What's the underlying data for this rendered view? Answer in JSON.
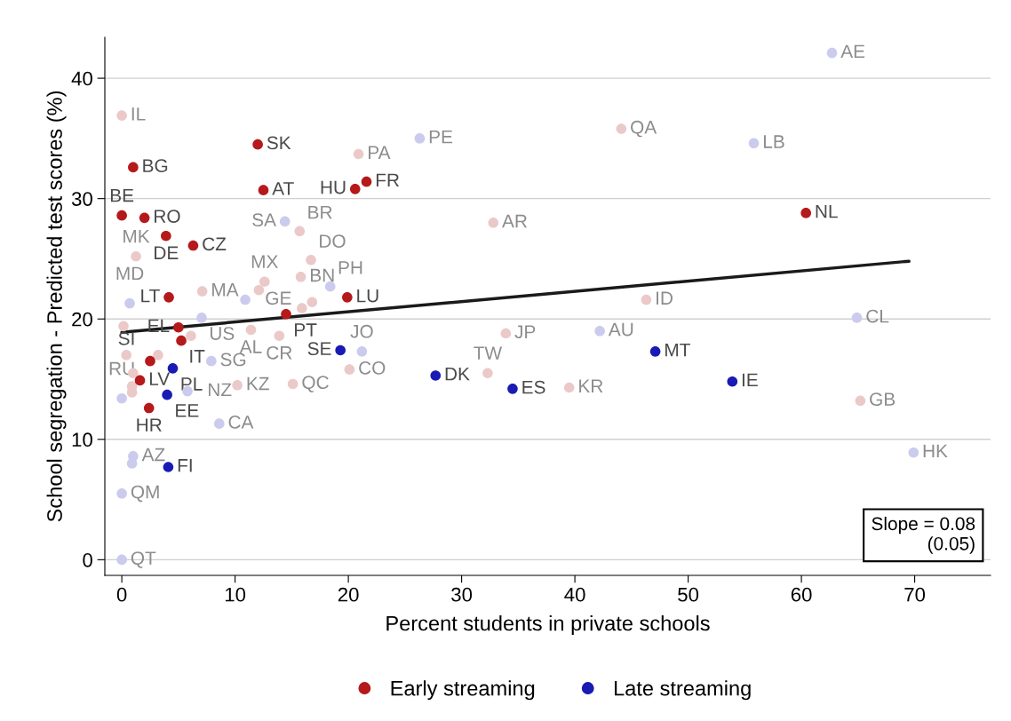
{
  "chart_data": {
    "type": "scatter",
    "xlabel": "Percent students in private schools",
    "ylabel": "School segregation - Predicted test scores (%)",
    "xlim": [
      -1.5,
      76.7
    ],
    "ylim": [
      -1.3,
      43.4
    ],
    "xticks": [
      0,
      10,
      20,
      30,
      40,
      50,
      60,
      70
    ],
    "yticks": [
      0,
      10,
      20,
      30,
      40
    ],
    "grid": "y",
    "legend": "bottom",
    "marker": "circle",
    "annotations": [
      "Slope = 0.08\n(0.05)"
    ],
    "series": [
      {
        "color": "#ebc9c9",
        "x": [
          0,
          1.25,
          7.1,
          0.15,
          0.4,
          3.2,
          1.0,
          0.9,
          0.9,
          6.1,
          11.4,
          13.9,
          12.6,
          12.1,
          15.8,
          16.7,
          15.7,
          15.9,
          16.8,
          20.1,
          15.1,
          10.2,
          20.9,
          44.1,
          32.8,
          46.3,
          33.9,
          32.3,
          39.5,
          65.2
        ],
        "values": [
          36.9,
          25.2,
          22.3,
          19.4,
          17.0,
          17.0,
          15.5,
          14.4,
          13.9,
          18.6,
          19.1,
          18.6,
          23.1,
          22.4,
          23.5,
          24.9,
          27.3,
          20.9,
          21.4,
          15.8,
          14.6,
          14.5,
          33.7,
          35.8,
          28.0,
          21.6,
          18.8,
          15.5,
          14.3,
          13.2
        ],
        "value_labels": [
          "IL",
          "MK",
          "MA",
          null,
          null,
          null,
          null,
          null,
          null,
          null,
          "AL",
          "CR",
          "MX",
          null,
          "BN",
          "DO",
          "BR",
          null,
          null,
          "CO",
          "QC",
          "KZ",
          "PA",
          "QA",
          "AR",
          "ID",
          "JP",
          "TW",
          "KR",
          "GB"
        ]
      },
      {
        "color": "#cbcbee",
        "x": [
          0,
          7.05,
          14.4,
          10.9,
          18.4,
          21.2,
          7.9,
          5.8,
          8.6,
          1.0,
          0.9,
          0,
          0,
          0.7,
          26.3,
          55.8,
          62.7,
          64.9,
          42.2,
          69.9
        ],
        "values": [
          13.4,
          20.1,
          28.1,
          21.6,
          22.7,
          17.3,
          16.5,
          14.0,
          11.3,
          8.6,
          8.0,
          5.5,
          0,
          21.3,
          35.0,
          34.6,
          42.1,
          20.1,
          19.0,
          8.9
        ],
        "value_labels": [
          "RU",
          "US",
          "SA",
          "GE",
          "PH",
          "JO",
          "SG",
          "NZ",
          "CA",
          "AZ",
          null,
          "QM",
          "QT",
          "MD",
          "PE",
          "LB",
          "AE",
          "CL",
          "AU",
          "HK"
        ]
      },
      {
        "name": "Early streaming",
        "color": "#b5191a",
        "x": [
          1.0,
          0,
          2.0,
          3.9,
          6.3,
          12.0,
          12.5,
          20.6,
          21.6,
          60.4,
          4.15,
          19.9,
          14.5,
          5.0,
          5.25,
          2.5,
          1.6,
          2.4
        ],
        "values": [
          32.6,
          28.6,
          28.4,
          26.9,
          26.1,
          34.5,
          30.7,
          30.8,
          31.4,
          28.8,
          21.8,
          21.8,
          20.4,
          19.3,
          18.2,
          16.5,
          14.9,
          12.6
        ],
        "value_labels": [
          "BG",
          "BE",
          "RO",
          "DE",
          "CZ",
          "SK",
          "AT",
          "HU",
          "FR",
          "NL",
          "LT",
          "LU",
          "PT",
          "EL",
          "IT",
          "SI",
          "LV",
          "HR"
        ]
      },
      {
        "name": "Late streaming",
        "color": "#1a1ab5",
        "x": [
          4.5,
          4.0,
          4.1,
          19.3,
          27.7,
          34.5,
          47.1,
          53.9
        ],
        "values": [
          15.9,
          13.7,
          7.7,
          17.4,
          15.3,
          14.2,
          17.3,
          14.8
        ],
        "value_labels": [
          "PL",
          "EE",
          "FI",
          "SE",
          "DK",
          "ES",
          "MT",
          "IE"
        ]
      },
      {
        "type": "line",
        "marker": "none",
        "color": "#1a1a1a",
        "x": [
          0,
          69.5
        ],
        "values": [
          18.9,
          24.8
        ]
      }
    ]
  }
}
